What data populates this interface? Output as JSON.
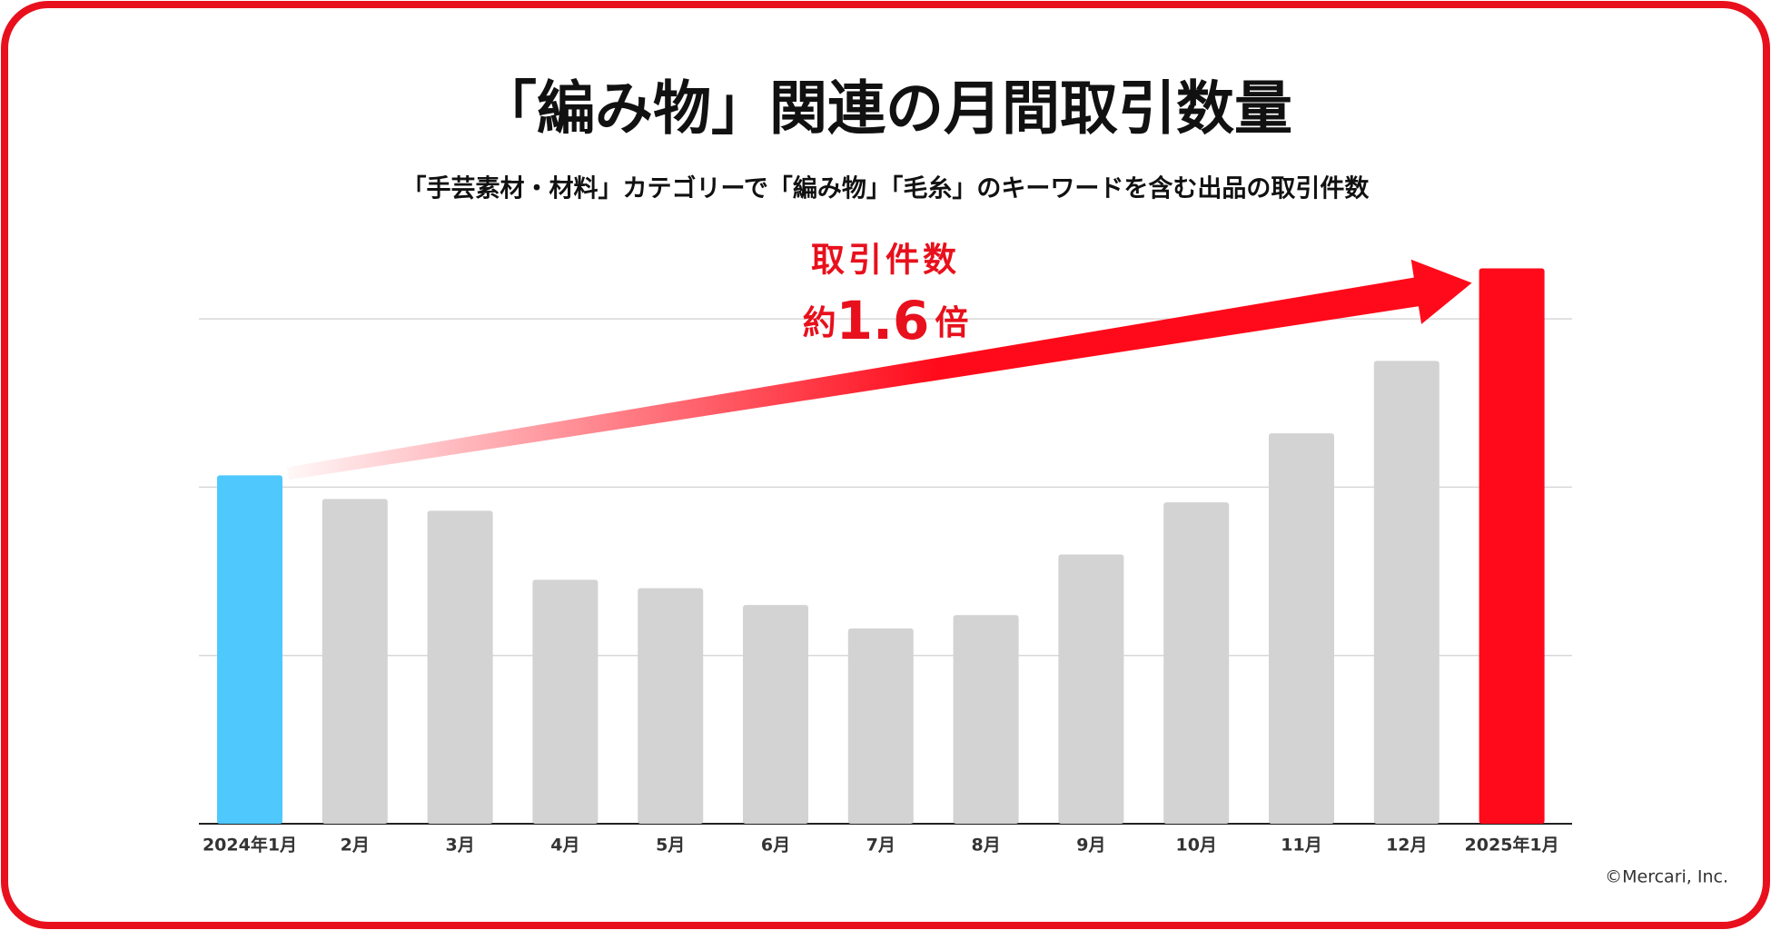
{
  "chart_data": {
    "type": "bar",
    "title": "「編み物」関連の月間取引数量",
    "subtitle": "「手芸素材・材料」カテゴリーで「編み物」「毛糸」のキーワードを含む出品の取引件数",
    "categories": [
      "2024年1月",
      "2月",
      "3月",
      "4月",
      "5月",
      "6月",
      "7月",
      "8月",
      "9月",
      "10月",
      "11月",
      "12月",
      "2025年1月"
    ],
    "values": [
      2.07,
      1.93,
      1.86,
      1.45,
      1.4,
      1.3,
      1.16,
      1.24,
      1.6,
      1.91,
      2.32,
      2.75,
      3.3
    ],
    "colors": [
      "#4fc8fd",
      "#d3d3d3",
      "#d3d3d3",
      "#d3d3d3",
      "#d3d3d3",
      "#d3d3d3",
      "#d3d3d3",
      "#d3d3d3",
      "#d3d3d3",
      "#d3d3d3",
      "#d3d3d3",
      "#d3d3d3",
      "#ff0a1a"
    ],
    "ylim": [
      0,
      3.4
    ],
    "yticks": [
      0,
      1,
      2,
      3
    ],
    "grid": true,
    "annotation": {
      "label": "取引件数",
      "prefix": "約",
      "value": "1.6",
      "suffix": "倍"
    },
    "credit": "©Mercari, Inc."
  }
}
